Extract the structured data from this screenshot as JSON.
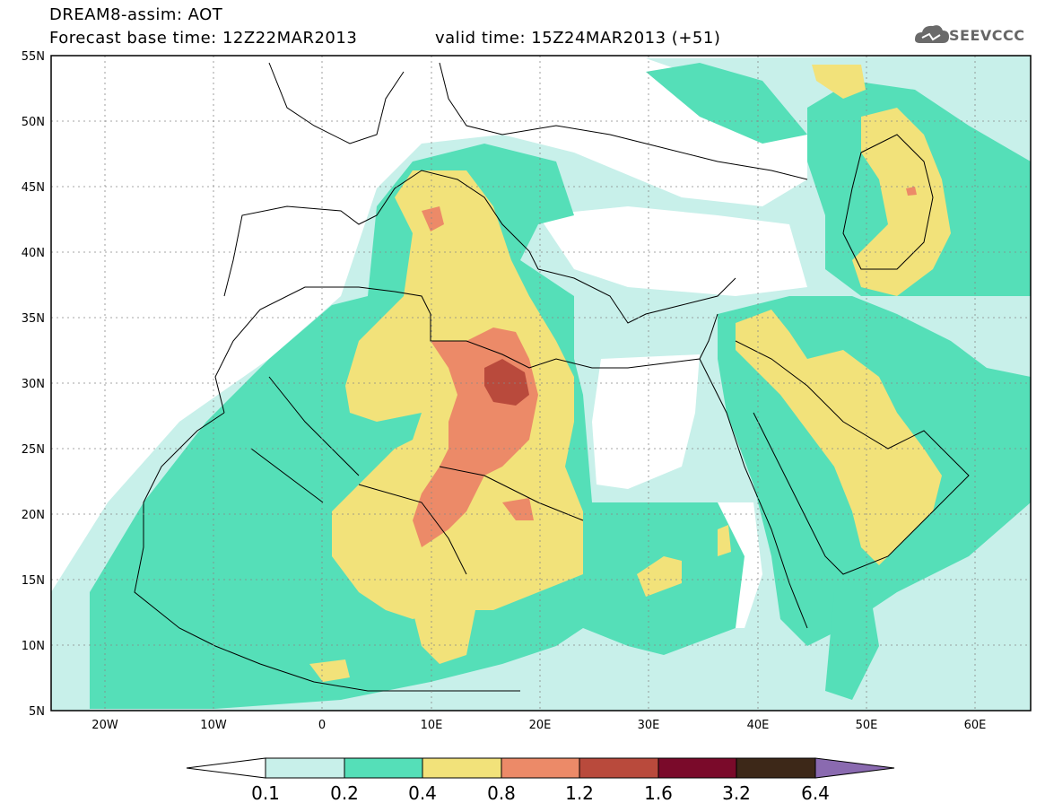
{
  "header": {
    "title": "DREAM8-assim: AOT",
    "forecast": "Forecast base time: 12Z22MAR2013",
    "valid": "valid time: 15Z24MAR2013 (+51)",
    "logo": "SEEVCCC"
  },
  "map": {
    "lat_labels": [
      "55N",
      "50N",
      "45N",
      "40N",
      "35N",
      "30N",
      "25N",
      "20N",
      "15N",
      "10N",
      "5N"
    ],
    "lon_labels": [
      "20W",
      "10W",
      "0",
      "10E",
      "20E",
      "30E",
      "40E",
      "50E",
      "60E"
    ]
  },
  "colorbar": {
    "labels": [
      "0.1",
      "0.2",
      "0.4",
      "0.8",
      "1.2",
      "1.6",
      "3.2",
      "6.4"
    ],
    "colors": [
      "#ffffff",
      "#c8f0ea",
      "#55dfb8",
      "#f2e27a",
      "#ec8a68",
      "#b94a3c",
      "#7a0a2a",
      "#3d2818",
      "#8a6ab0"
    ]
  }
}
